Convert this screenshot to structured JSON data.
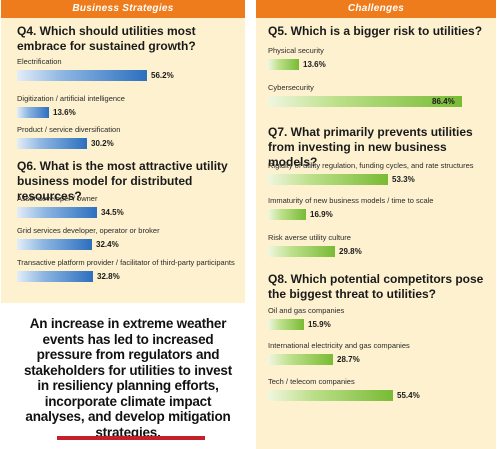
{
  "left_panel": {
    "header": "Business Strategies"
  },
  "right_panel": {
    "header": "Challenges"
  },
  "caption": "An increase in extreme weather events has led to increased pressure from regulators and stakeholders for utilities to invest in resiliency planning efforts, incorporate climate impact analyses, and develop mitigation strategies.",
  "colors": {
    "header": "#ee7c1d",
    "panel_bg": "#fdf1cf",
    "blue_bar": "#2c6fbf",
    "green_bar": "#86c440",
    "caption_rule": "#c5202a"
  },
  "chart_data": [
    {
      "type": "bar",
      "title": "Q4. Which should utilities most embrace for sustained growth?",
      "categories": [
        "Electrification",
        "Digitization / artificial intelligence",
        "Product / service diversification"
      ],
      "values": [
        56.2,
        13.6,
        30.2
      ],
      "value_labels": [
        "56.2%",
        "13.6%",
        "30.2%"
      ],
      "color": "blue"
    },
    {
      "type": "bar",
      "title": "Q6. What is the most attractive utility business model for distributed resources?",
      "categories": [
        "Asset developer / owner",
        "Grid services developer, operator or broker",
        "Transactive platform provider / facilitator of third-party participants"
      ],
      "values": [
        34.5,
        32.4,
        32.8
      ],
      "value_labels": [
        "34.5%",
        "32.4%",
        "32.8%"
      ],
      "color": "blue"
    },
    {
      "type": "bar",
      "title": "Q5. Which is a bigger risk to utilities?",
      "categories": [
        "Physical security",
        "Cybersecurity"
      ],
      "values": [
        13.6,
        86.4
      ],
      "value_labels": [
        "13.6%",
        "86.4%"
      ],
      "color": "green"
    },
    {
      "type": "bar",
      "title": "Q7. What primarily prevents utilities from investing in new business models?",
      "categories": [
        "Rigidity of utility regulation, funding cycles, and rate structures",
        "Immaturity of new business models / time to scale",
        "Risk averse utility culture"
      ],
      "values": [
        53.3,
        16.9,
        29.8
      ],
      "value_labels": [
        "53.3%",
        "16.9%",
        "29.8%"
      ],
      "color": "green"
    },
    {
      "type": "bar",
      "title": "Q8. Which potential competitors pose the biggest threat to utilities?",
      "categories": [
        "Oil and gas companies",
        "International electricity and gas companies",
        "Tech / telecom companies"
      ],
      "values": [
        15.9,
        28.7,
        55.4
      ],
      "value_labels": [
        "15.9%",
        "28.7%",
        "55.4%"
      ],
      "color": "green"
    }
  ]
}
